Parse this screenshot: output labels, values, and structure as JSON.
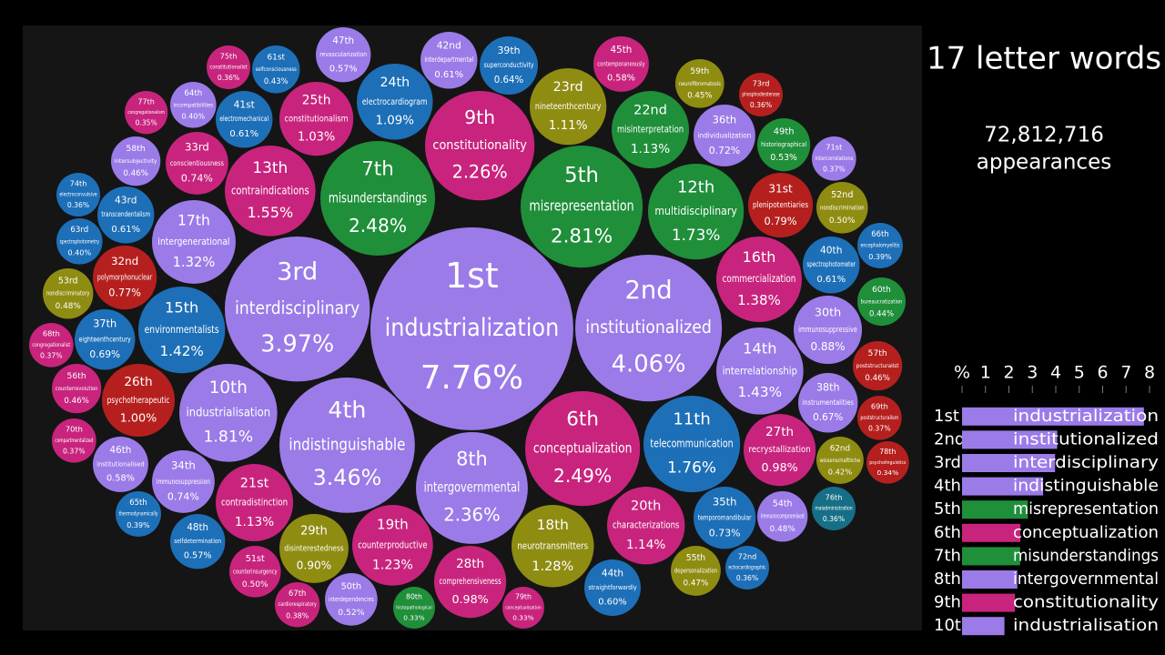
{
  "header": {
    "title": "17 letter words",
    "count": "72,812,716",
    "unit": "appearances"
  },
  "chart_data": [
    {
      "type": "bubble",
      "ranks": [
        "1st",
        "2nd",
        "3rd",
        "4th",
        "5th",
        "6th",
        "7th",
        "8th",
        "9th",
        "10th",
        "11th",
        "12th",
        "13th",
        "14th",
        "15th",
        "16th",
        "17th",
        "18th",
        "19th",
        "20th",
        "21st",
        "22nd",
        "23rd",
        "24th",
        "25th",
        "26th",
        "27th",
        "28th",
        "29th",
        "30th",
        "31st",
        "32nd",
        "33rd",
        "34th",
        "35th",
        "36th",
        "37th",
        "38th",
        "39th",
        "40th",
        "41st",
        "42nd",
        "43rd",
        "44th",
        "45th",
        "46th",
        "47th",
        "48th",
        "49th",
        "50th",
        "51st",
        "52nd",
        "53rd",
        "54th",
        "55th",
        "56th",
        "57th",
        "58th",
        "59th",
        "60th",
        "61st",
        "62nd",
        "63rd",
        "64th",
        "65th",
        "66th",
        "67th",
        "68th",
        "69th",
        "70th",
        "71st",
        "72nd",
        "73rd",
        "74th",
        "75th",
        "76th",
        "77th",
        "78th",
        "79th",
        "80th"
      ],
      "categories": [
        "industrialization",
        "institutionalized",
        "interdisciplinary",
        "indistinguishable",
        "misrepresentation",
        "conceptualization",
        "misunderstandings",
        "intergovernmental",
        "constitutionality",
        "industrialisation",
        "telecommunication",
        "multidisciplinary",
        "contraindications",
        "interrelationship",
        "environmentalists",
        "commercialization",
        "intergenerational",
        "neurotransmitters",
        "counterproductive",
        "characterizations",
        "contradistinction",
        "misinterpretation",
        "nineteenthcentury",
        "electrocardiogram",
        "constitutionalism",
        "psychotherapeutic",
        "recrystallization",
        "comprehensiveness",
        "disinterestedness",
        "immunosuppressive",
        "plenipotentiaries",
        "polymorphonuclear",
        "conscientiousness",
        "immunosuppression",
        "temporomandibular",
        "individualization",
        "eighteenthcentury",
        "instrumentalities",
        "superconductivity",
        "spectrophotometer",
        "electromechanical",
        "interdepartmental",
        "transcendentalism",
        "straightforwardly",
        "contemporaneously",
        "institutionalised",
        "revascularization",
        "selfdetermination",
        "historiographical",
        "interdependencies",
        "counterinsurgency",
        "nondiscrimination",
        "nondiscriminatory",
        "immunocompromised",
        "depersonalization",
        "counterrevolution",
        "poststructuralist",
        "intersubjectivity",
        "neurofibromatosis",
        "bureaucratization",
        "selfconsciousness",
        "wissenschaftliche",
        "spectrophotometry",
        "incompatibilities",
        "thermodynamically",
        "encephalomyelitis",
        "cardiorespiratory",
        "congregationalist",
        "poststructuralism",
        "compartmentalized",
        "intercorrelations",
        "echocardiographic",
        "phosphodiesterase",
        "electroconvulsive",
        "constitutionalist",
        "maladministration",
        "congregationalism",
        "psycholinguistics",
        "conceptualisation",
        "histopathological"
      ],
      "values": [
        7.76,
        4.06,
        3.97,
        3.46,
        2.81,
        2.49,
        2.48,
        2.36,
        2.26,
        1.81,
        1.76,
        1.73,
        1.55,
        1.43,
        1.42,
        1.38,
        1.32,
        1.28,
        1.23,
        1.14,
        1.13,
        1.13,
        1.11,
        1.09,
        1.03,
        1.0,
        0.98,
        0.98,
        0.9,
        0.88,
        0.79,
        0.77,
        0.74,
        0.74,
        0.73,
        0.72,
        0.69,
        0.67,
        0.64,
        0.61,
        0.61,
        0.61,
        0.61,
        0.6,
        0.58,
        0.58,
        0.57,
        0.57,
        0.53,
        0.52,
        0.5,
        0.5,
        0.48,
        0.48,
        0.47,
        0.46,
        0.46,
        0.46,
        0.45,
        0.44,
        0.43,
        0.42,
        0.4,
        0.4,
        0.39,
        0.39,
        0.38,
        0.37,
        0.37,
        0.37,
        0.37,
        0.36,
        0.36,
        0.36,
        0.36,
        0.36,
        0.35,
        0.34,
        0.33,
        0.33
      ],
      "value_labels": [
        "7.76%",
        "4.06%",
        "3.97%",
        "3.46%",
        "2.81%",
        "2.49%",
        "2.48%",
        "2.36%",
        "2.26%",
        "1.81%",
        "1.76%",
        "1.73%",
        "1.55%",
        "1.43%",
        "1.42%",
        "1.38%",
        "1.32%",
        "1.28%",
        "1.23%",
        "1.14%",
        "1.13%",
        "1.13%",
        "1.11%",
        "1.09%",
        "1.03%",
        "1.00%",
        "0.98%",
        "0.98%",
        "0.90%",
        "0.88%",
        "0.79%",
        "0.77%",
        "0.74%",
        "0.74%",
        "0.73%",
        "0.72%",
        "0.69%",
        "0.67%",
        "0.64%",
        "0.61%",
        "0.61%",
        "0.61%",
        "0.61%",
        "0.60%",
        "0.58%",
        "0.58%",
        "0.57%",
        "0.57%",
        "0.53%",
        "0.52%",
        "0.50%",
        "0.50%",
        "0.48%",
        "0.48%",
        "0.47%",
        "0.46%",
        "0.46%",
        "0.46%",
        "0.45%",
        "0.44%",
        "0.43%",
        "0.42%",
        "0.40%",
        "0.40%",
        "0.39%",
        "0.39%",
        "0.38%",
        "0.37%",
        "0.37%",
        "0.37%",
        "0.37%",
        "0.36%",
        "0.36%",
        "0.36%",
        "0.36%",
        "0.36%",
        "0.35%",
        "0.34%",
        "0.33%",
        "0.33%"
      ],
      "colors": [
        "#9b7be8",
        "#9b7be8",
        "#9b7be8",
        "#9b7be8",
        "#1f8f3a",
        "#c8247d",
        "#1f8f3a",
        "#9b7be8",
        "#c8247d",
        "#9b7be8",
        "#1d6fb8",
        "#1f8f3a",
        "#c8247d",
        "#9b7be8",
        "#1d6fb8",
        "#c8247d",
        "#9b7be8",
        "#8f8c12",
        "#c8247d",
        "#c8247d",
        "#c8247d",
        "#1f8f3a",
        "#8f8c12",
        "#1d6fb8",
        "#c8247d",
        "#b5201e",
        "#c8247d",
        "#c8247d",
        "#8f8c12",
        "#9b7be8",
        "#b5201e",
        "#b5201e",
        "#c8247d",
        "#9b7be8",
        "#1d6fb8",
        "#9b7be8",
        "#1d6fb8",
        "#9b7be8",
        "#1d6fb8",
        "#1d6fb8",
        "#1d6fb8",
        "#9b7be8",
        "#1d6fb8",
        "#1d6fb8",
        "#c8247d",
        "#9b7be8",
        "#9b7be8",
        "#1d6fb8",
        "#1f8f3a",
        "#9b7be8",
        "#c8247d",
        "#8f8c12",
        "#8f8c12",
        "#9b7be8",
        "#8f8c12",
        "#c8247d",
        "#b5201e",
        "#9b7be8",
        "#8f8c12",
        "#1f8f3a",
        "#1d6fb8",
        "#8f8c12",
        "#1d6fb8",
        "#9b7be8",
        "#1d6fb8",
        "#1d6fb8",
        "#c8247d",
        "#c8247d",
        "#b5201e",
        "#c8247d",
        "#9b7be8",
        "#1d6fb8",
        "#b5201e",
        "#1d6fb8",
        "#c8247d",
        "#166f86",
        "#c8247d",
        "#b5201e",
        "#c8247d",
        "#1f8f3a"
      ]
    },
    {
      "type": "bar",
      "orientation": "horizontal",
      "categories": [
        "1st",
        "2nd",
        "3rd",
        "4th",
        "5th",
        "6th",
        "7th",
        "8th",
        "9th",
        "10th"
      ],
      "names": [
        "industrialization",
        "institutionalized",
        "interdisciplinary",
        "indistinguishable",
        "misrepresentation",
        "conceptualization",
        "misunderstandings",
        "intergovernmental",
        "constitutionality",
        "industrialisation"
      ],
      "values": [
        7.76,
        4.06,
        3.97,
        3.46,
        2.81,
        2.49,
        2.48,
        2.36,
        2.26,
        1.81
      ],
      "colors": [
        "#9b7be8",
        "#9b7be8",
        "#9b7be8",
        "#9b7be8",
        "#1f8f3a",
        "#c8247d",
        "#1f8f3a",
        "#9b7be8",
        "#c8247d",
        "#9b7be8"
      ],
      "xlim": [
        0,
        8
      ],
      "xticks": [
        {
          "value": 0,
          "label": "%"
        },
        1,
        2,
        3,
        4,
        5,
        6,
        7,
        8
      ]
    }
  ]
}
